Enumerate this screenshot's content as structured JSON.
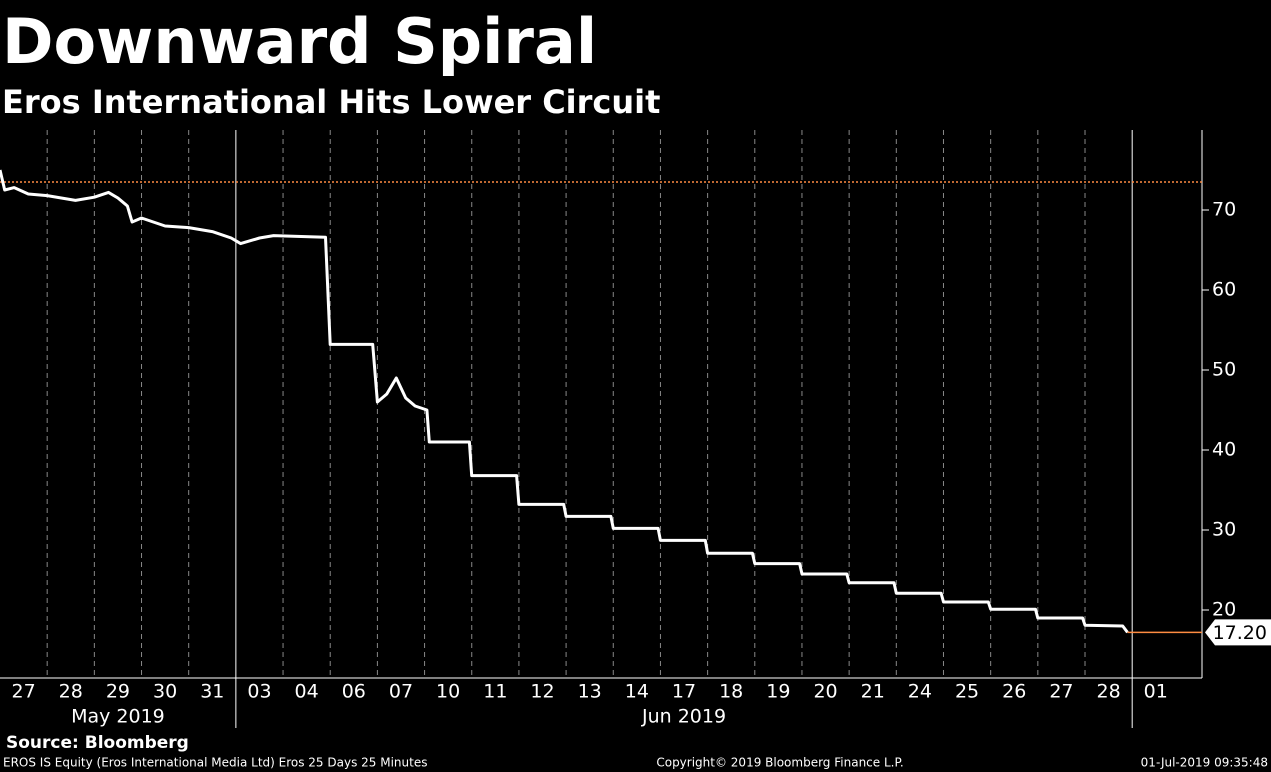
{
  "chart_data": {
    "type": "line",
    "title": "Downward Spiral",
    "subtitle": "Eros International Hits Lower Circuit",
    "categories": [
      "27",
      "28",
      "29",
      "30",
      "31",
      "03",
      "04",
      "06",
      "07",
      "10",
      "11",
      "12",
      "13",
      "14",
      "17",
      "18",
      "19",
      "20",
      "21",
      "24",
      "25",
      "26",
      "27",
      "28",
      "01"
    ],
    "month_labels": [
      "May 2019",
      "Jun 2019"
    ],
    "x": [
      0,
      0.1,
      0.3,
      0.6,
      1,
      1.3,
      1.6,
      2,
      2.3,
      2.5,
      2.7,
      2.8,
      3,
      3.5,
      4,
      4.5,
      4.9,
      5.1,
      5.5,
      5.8,
      6.3,
      6.9,
      7,
      7.9,
      8,
      8.2,
      8.4,
      8.6,
      8.8,
      9.05,
      9.1,
      9.95,
      10,
      10.95,
      11,
      11.95,
      12,
      12.95,
      13,
      13.95,
      14,
      14.95,
      15,
      15.95,
      16,
      16.95,
      17,
      17.95,
      18,
      18.95,
      19,
      19.95,
      20,
      20.95,
      21,
      21.95,
      22,
      22.95,
      23,
      23.8,
      23.9
    ],
    "values": [
      75,
      72.5,
      72.8,
      72,
      71.8,
      71.5,
      71.2,
      71.6,
      72.2,
      71.5,
      70.5,
      68.5,
      69,
      68,
      67.8,
      67.3,
      66.5,
      65.8,
      66.5,
      66.8,
      66.7,
      66.6,
      53.2,
      53.2,
      46,
      47,
      49,
      46.5,
      45.5,
      45,
      41,
      41,
      36.8,
      36.8,
      33.2,
      33.2,
      31.7,
      31.7,
      30.2,
      30.2,
      28.7,
      28.7,
      27.1,
      27.1,
      25.8,
      25.8,
      24.5,
      24.5,
      23.4,
      23.4,
      22.1,
      22.1,
      21.0,
      21.0,
      20.1,
      20.1,
      19.0,
      19.0,
      18.1,
      18.0,
      17.2
    ],
    "color": "#ffffff",
    "xlim": [
      0,
      25.48
    ],
    "ylim": [
      11.5,
      80
    ],
    "yticks": [
      20,
      30,
      40,
      50,
      60,
      70
    ],
    "reference_line": {
      "value": 73.5,
      "color": "#ff8c42"
    },
    "last_price": {
      "value": 17.2,
      "label": "17.20",
      "color": "#ff8c42"
    },
    "source": "Source: Bloomberg",
    "footer_left": "EROS IS Equity (Eros International Media Ltd) Eros 25 Days 25 Minutes",
    "footer_center": "Copyright© 2019 Bloomberg Finance L.P.",
    "footer_right": "01-Jul-2019 09:35:48"
  }
}
